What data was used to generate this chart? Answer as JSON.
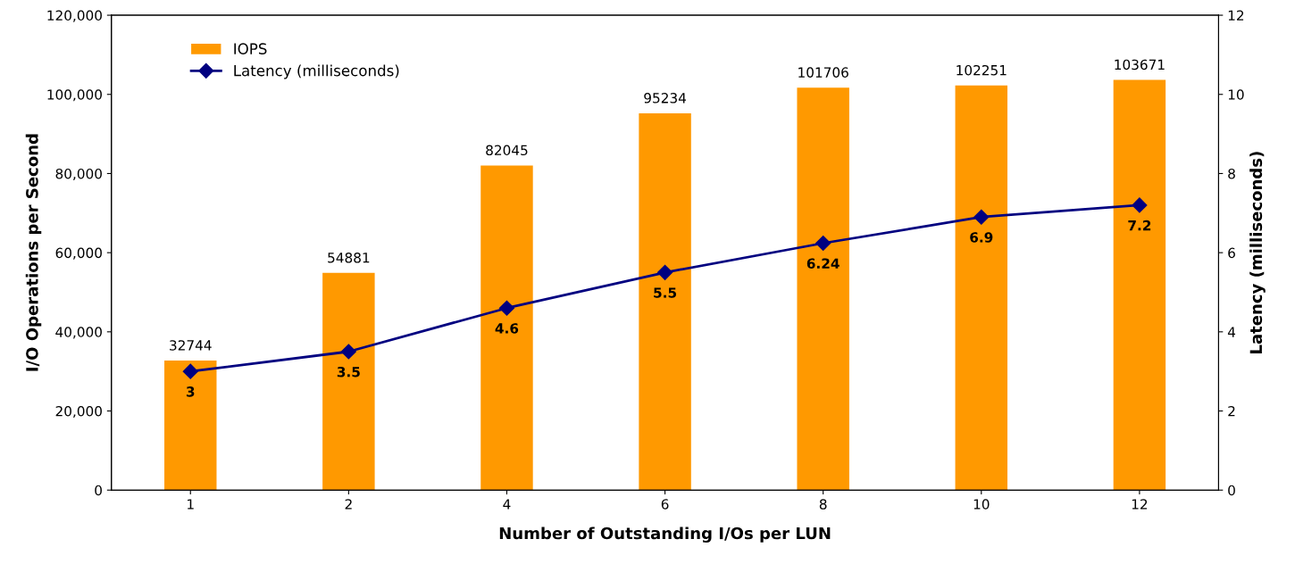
{
  "chart_data": {
    "type": "bar",
    "xlabel": "Number of Outstanding I/Os per LUN",
    "ylabel": "I/O Operations per Second",
    "y2label": "Latency (milliseconds)",
    "categories": [
      "1",
      "2",
      "4",
      "6",
      "8",
      "10",
      "12"
    ],
    "series": [
      {
        "name": "IOPS",
        "color": "#ff9900",
        "values": [
          32744,
          54881,
          82045,
          95234,
          101706,
          102251,
          103671
        ]
      },
      {
        "name": "Latency (milliseconds)",
        "type": "line",
        "axis": "y2",
        "color": "#000080",
        "marker": "diamond",
        "values": [
          3,
          3.5,
          4.6,
          5.5,
          6.24,
          6.9,
          7.2
        ]
      }
    ],
    "data_labels": true,
    "ylim": [
      0,
      120000
    ],
    "yticks": [
      0,
      {
        "value": 20000,
        "label": "20,000"
      },
      {
        "value": 40000,
        "label": "40,000"
      },
      {
        "value": 60000,
        "label": "60,000"
      },
      {
        "value": 80000,
        "label": "80,000"
      },
      {
        "value": 100000,
        "label": "100,000"
      },
      {
        "value": 120000,
        "label": "120,000"
      }
    ],
    "y2lim": [
      0,
      12
    ],
    "y2ticks": [
      0,
      2,
      4,
      6,
      8,
      10,
      12
    ],
    "grid": false,
    "legend": "top left"
  }
}
